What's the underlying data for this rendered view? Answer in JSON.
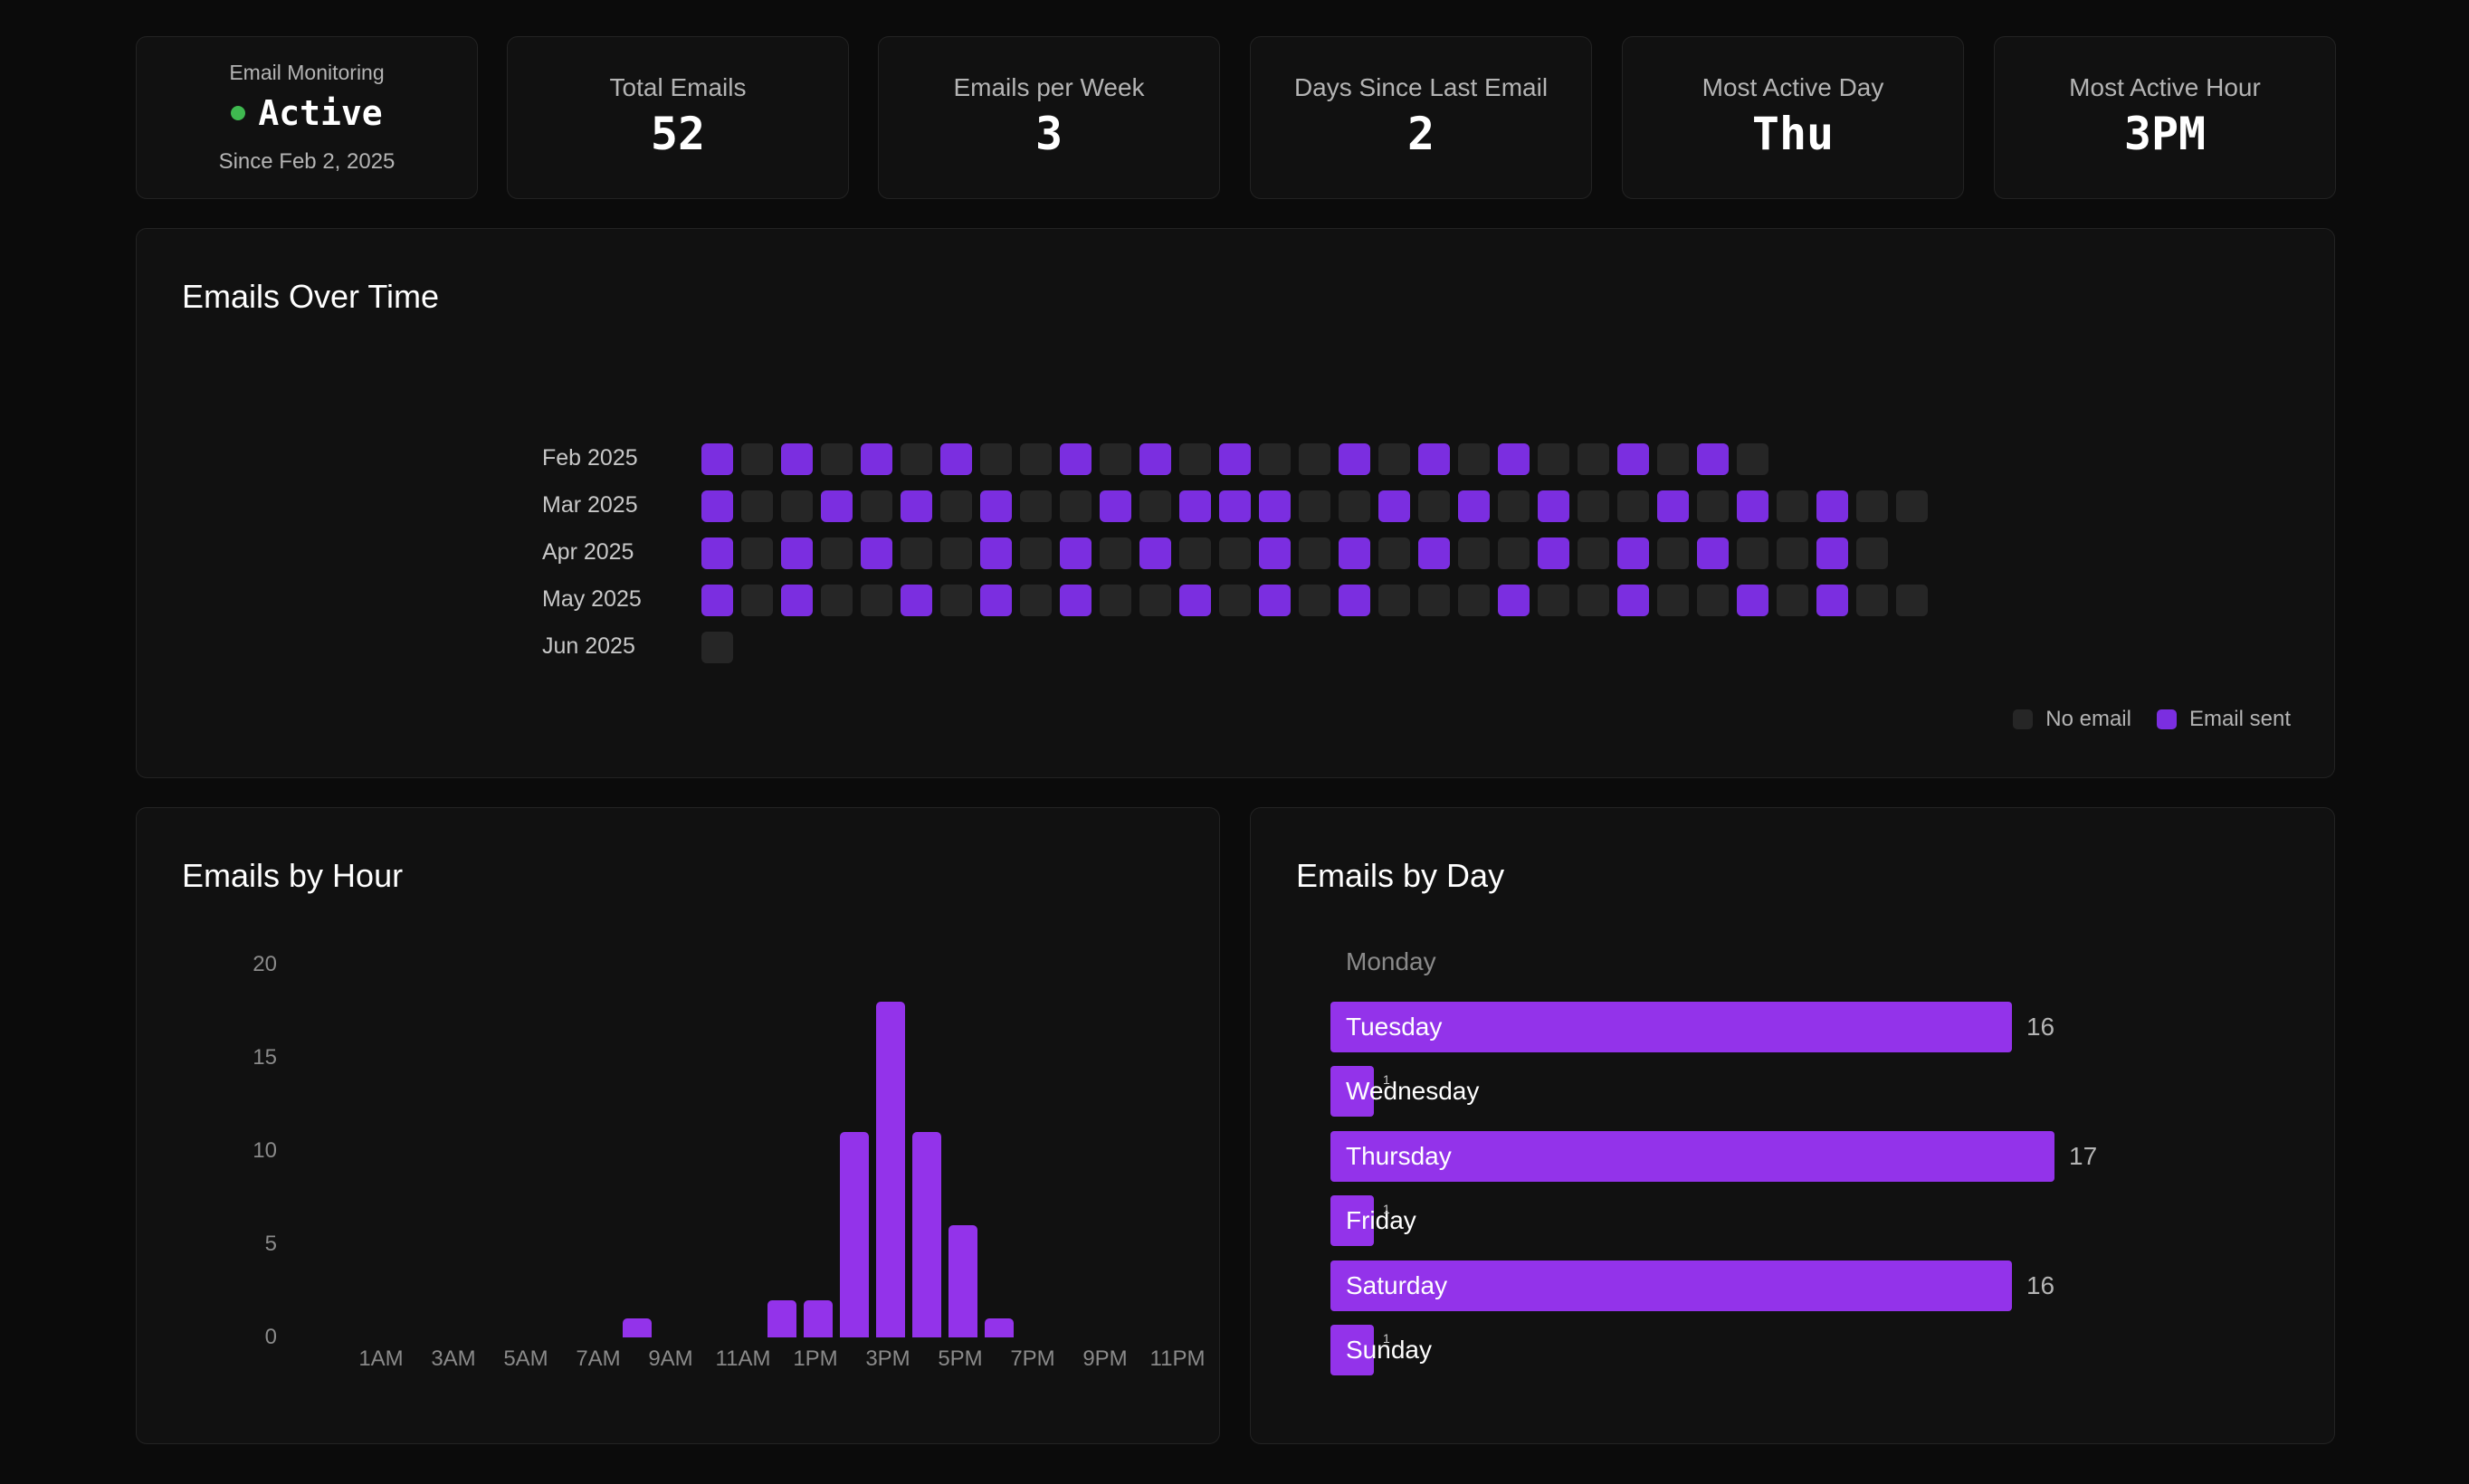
{
  "stats": [
    {
      "label": "Email Monitoring",
      "value": "Active",
      "since": "Since Feb 2, 2025"
    },
    {
      "label": "Total Emails",
      "value": "52"
    },
    {
      "label": "Emails per Week",
      "value": "3"
    },
    {
      "label": "Days Since Last Email",
      "value": "2"
    },
    {
      "label": "Most Active Day",
      "value": "Thu"
    },
    {
      "label": "Most Active Hour",
      "value": "3PM"
    }
  ],
  "colors": {
    "background": "#0b0b0b",
    "card": "#111111",
    "accent": "#9333ea",
    "sent_cell": "#7b2ee0",
    "empty_cell": "#262626",
    "active_dot": "#3fb950"
  },
  "calendar": {
    "title": "Emails Over Time",
    "months": [
      {
        "label": "Feb 2025",
        "days": [
          1,
          0,
          1,
          0,
          1,
          0,
          1,
          0,
          0,
          1,
          0,
          1,
          0,
          1,
          0,
          0,
          1,
          0,
          1,
          0,
          1,
          0,
          0,
          1,
          0,
          1,
          0
        ]
      },
      {
        "label": "Mar 2025",
        "days": [
          1,
          0,
          0,
          1,
          0,
          1,
          0,
          1,
          0,
          0,
          1,
          0,
          1,
          1,
          1,
          0,
          0,
          1,
          0,
          1,
          0,
          1,
          0,
          0,
          1,
          0,
          1,
          0,
          1,
          0,
          0
        ]
      },
      {
        "label": "Apr 2025",
        "days": [
          1,
          0,
          1,
          0,
          1,
          0,
          0,
          1,
          0,
          1,
          0,
          1,
          0,
          0,
          1,
          0,
          1,
          0,
          1,
          0,
          0,
          1,
          0,
          1,
          0,
          1,
          0,
          0,
          1,
          0
        ]
      },
      {
        "label": "May 2025",
        "days": [
          1,
          0,
          1,
          0,
          0,
          1,
          0,
          1,
          0,
          1,
          0,
          0,
          1,
          0,
          1,
          0,
          1,
          0,
          0,
          0,
          1,
          0,
          0,
          1,
          0,
          0,
          1,
          0,
          1,
          0,
          0
        ]
      },
      {
        "label": "Jun 2025",
        "days": [
          0
        ]
      }
    ],
    "legend": {
      "no_email": "No email",
      "email_sent": "Email sent"
    }
  },
  "chart_data": [
    {
      "type": "bar",
      "title": "Emails by Hour",
      "categories": [
        "12AM",
        "1AM",
        "2AM",
        "3AM",
        "4AM",
        "5AM",
        "6AM",
        "7AM",
        "8AM",
        "9AM",
        "10AM",
        "11AM",
        "12PM",
        "1PM",
        "2PM",
        "3PM",
        "4PM",
        "5PM",
        "6PM",
        "7PM",
        "8PM",
        "9PM",
        "10PM",
        "11PM"
      ],
      "tick_labels": [
        "1AM",
        "3AM",
        "5AM",
        "7AM",
        "9AM",
        "11AM",
        "1PM",
        "3PM",
        "5PM",
        "7PM",
        "9PM",
        "11PM"
      ],
      "values": [
        0,
        0,
        0,
        0,
        0,
        0,
        0,
        0,
        1,
        0,
        0,
        0,
        2,
        2,
        11,
        18,
        11,
        6,
        1,
        0,
        0,
        0,
        0,
        0
      ],
      "yticks": [
        0,
        5,
        10,
        15,
        20
      ],
      "ylim": [
        0,
        20
      ]
    },
    {
      "type": "bar",
      "orientation": "horizontal",
      "title": "Emails by Day",
      "categories": [
        "Monday",
        "Tuesday",
        "Wednesday",
        "Thursday",
        "Friday",
        "Saturday",
        "Sunday"
      ],
      "values": [
        0,
        16,
        1,
        17,
        1,
        16,
        1
      ],
      "value_labels": [
        "",
        "16",
        "1",
        "17",
        "1",
        "16",
        "1"
      ],
      "xlim": [
        0,
        17
      ]
    }
  ]
}
